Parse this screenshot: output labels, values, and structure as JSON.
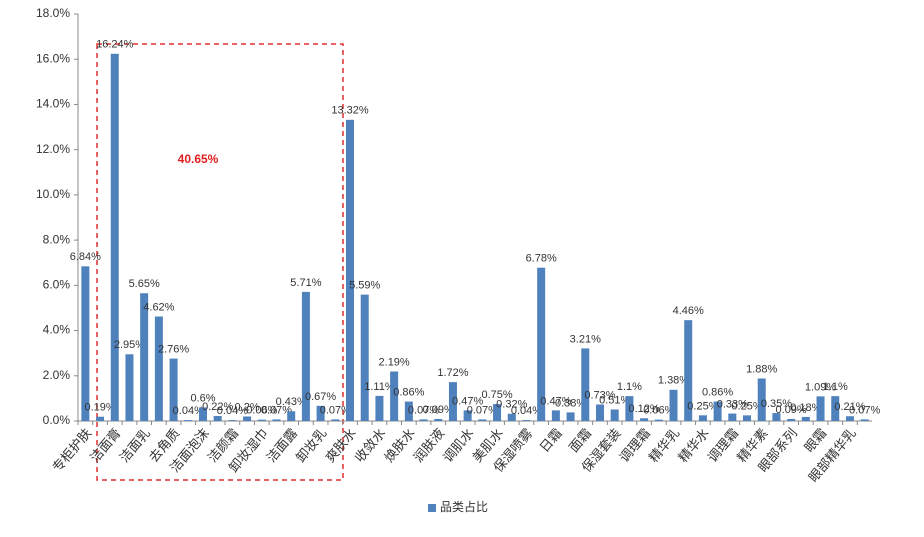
{
  "chart_data": {
    "type": "bar",
    "annotation": "40.65%",
    "categories": [
      "专柜护肤",
      null,
      "洁面膏",
      null,
      "洁面乳",
      null,
      "去角质",
      null,
      "洁面泡沫",
      null,
      "洁颜霜",
      null,
      "卸妆湿巾",
      null,
      "洁面露",
      null,
      "卸妆乳",
      null,
      "爽肤水",
      null,
      "收敛水",
      null,
      "焕肤水",
      null,
      "润肤液",
      null,
      "调肌水",
      null,
      "美肌水",
      null,
      "保湿喷雾",
      null,
      "日霜",
      null,
      "面霜",
      null,
      "保湿套装",
      null,
      "调理霜",
      null,
      "精华乳",
      null,
      "精华水",
      null,
      "调理霜",
      null,
      "精华素",
      null,
      "眼部系列",
      null,
      "眼霜",
      null,
      "眼部精华乳",
      null
    ],
    "series": [
      {
        "name": "品类占比",
        "color": "#4f81bd",
        "values": [
          6.84,
          0.19,
          16.24,
          2.95,
          5.65,
          4.62,
          2.76,
          0.04,
          0.6,
          0.22,
          0.04,
          0.2,
          0.06,
          0.07,
          0.43,
          5.71,
          0.67,
          0.07,
          13.32,
          5.59,
          1.11,
          2.19,
          0.86,
          0.07,
          0.09,
          1.72,
          0.47,
          0.07,
          0.75,
          0.32,
          0.04,
          6.78,
          0.47,
          0.38,
          3.21,
          0.73,
          0.51,
          1.1,
          0.12,
          0.06,
          1.38,
          4.46,
          0.25,
          0.86,
          0.33,
          0.25,
          1.88,
          0.35,
          0.09,
          0.18,
          1.09,
          1.1,
          0.21,
          0.07
        ],
        "value_labels": [
          "6.84%",
          "0.19%",
          "16.24%",
          "2.95%",
          "5.65%",
          "4.62%",
          "2.76%",
          "0.04%",
          "0.6%",
          "0.22%",
          "0.04%",
          "0.2%",
          "0.06%",
          "0.07%",
          "0.43%",
          "5.71%",
          "0.67%",
          "0.07%",
          "13.32%",
          "5.59%",
          "1.11%",
          "2.19%",
          "0.86%",
          "0.07%",
          "0.09%",
          "1.72%",
          "0.47%",
          "0.07%",
          "0.75%",
          "0.32%",
          "0.04%",
          "6.78%",
          "0.47%",
          "0.38%",
          "3.21%",
          "0.73%",
          "0.51%",
          "1.1%",
          "0.12%",
          "0.06%",
          "1.38%",
          "4.46%",
          "0.25%",
          "0.86%",
          "0.33%",
          "0.25%",
          "1.88%",
          "0.35%",
          "0.09%",
          "0.18%",
          "1.09%",
          "1.1%",
          "0.21%",
          "0.07%"
        ]
      }
    ],
    "ylim": [
      0,
      18
    ],
    "yticks": [
      {
        "value": 0,
        "label": "0.0%"
      },
      {
        "value": 2,
        "label": "2.0%"
      },
      {
        "value": 4,
        "label": "4.0%"
      },
      {
        "value": 6,
        "label": "6.0%"
      },
      {
        "value": 8,
        "label": "8.0%"
      },
      {
        "value": 10,
        "label": "10.0%"
      },
      {
        "value": 12,
        "label": "12.0%"
      },
      {
        "value": 14,
        "label": "14.0%"
      },
      {
        "value": 16,
        "label": "16.0%"
      },
      {
        "value": 18,
        "label": "18.0%"
      }
    ],
    "legend": "bottom"
  }
}
